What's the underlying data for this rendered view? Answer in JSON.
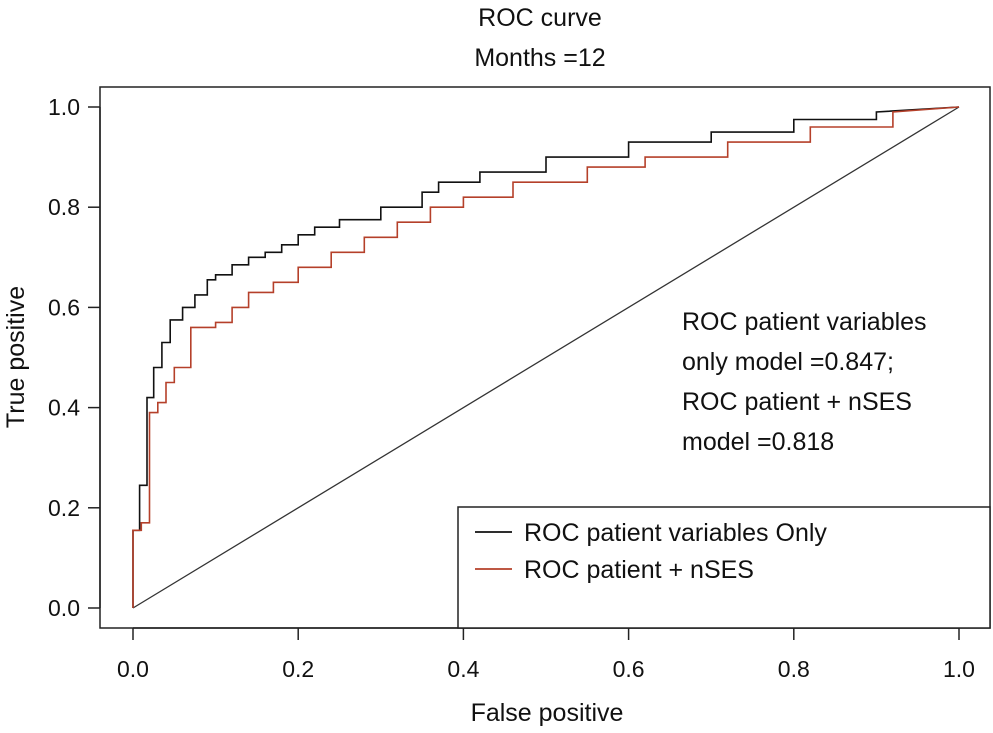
{
  "chart_data": {
    "type": "line",
    "title": "ROC curve",
    "subtitle": "Months =12",
    "xlabel": "False positive",
    "ylabel": "True positive",
    "xlim": [
      -0.04,
      1.04
    ],
    "ylim": [
      -0.04,
      1.04
    ],
    "xticks": [
      "0.0",
      "0.2",
      "0.4",
      "0.6",
      "0.8",
      "1.0"
    ],
    "yticks": [
      "0.0",
      "0.2",
      "0.4",
      "0.6",
      "0.8",
      "1.0"
    ],
    "grid": false,
    "annotation": [
      "ROC patient variables",
      "only model =0.847;",
      "ROC patient + nSES",
      "model =0.818"
    ],
    "legend": {
      "placement": "bottom-right",
      "entries": [
        "ROC patient variables Only",
        "ROC patient + nSES"
      ]
    },
    "series": [
      {
        "name": "ROC patient variables Only",
        "color": "#111111",
        "x": [
          0,
          0,
          0.008,
          0.008,
          0.017,
          0.017,
          0.025,
          0.025,
          0.035,
          0.035,
          0.045,
          0.045,
          0.06,
          0.06,
          0.075,
          0.075,
          0.09,
          0.09,
          0.1,
          0.1,
          0.12,
          0.12,
          0.14,
          0.14,
          0.16,
          0.16,
          0.18,
          0.18,
          0.2,
          0.2,
          0.22,
          0.22,
          0.25,
          0.25,
          0.3,
          0.3,
          0.35,
          0.35,
          0.37,
          0.37,
          0.42,
          0.42,
          0.5,
          0.5,
          0.6,
          0.6,
          0.7,
          0.7,
          0.8,
          0.8,
          0.9,
          0.9,
          1.0
        ],
        "y": [
          0,
          0.155,
          0.155,
          0.245,
          0.245,
          0.42,
          0.42,
          0.48,
          0.48,
          0.53,
          0.53,
          0.575,
          0.575,
          0.6,
          0.6,
          0.625,
          0.625,
          0.655,
          0.655,
          0.665,
          0.665,
          0.685,
          0.685,
          0.7,
          0.7,
          0.71,
          0.71,
          0.725,
          0.725,
          0.745,
          0.745,
          0.76,
          0.76,
          0.775,
          0.775,
          0.8,
          0.8,
          0.83,
          0.83,
          0.85,
          0.85,
          0.87,
          0.87,
          0.9,
          0.9,
          0.93,
          0.93,
          0.95,
          0.95,
          0.975,
          0.975,
          0.99,
          1.0
        ]
      },
      {
        "name": "ROC patient + nSES",
        "color": "#b5402a",
        "x": [
          0,
          0,
          0.01,
          0.01,
          0.02,
          0.02,
          0.03,
          0.03,
          0.04,
          0.04,
          0.05,
          0.05,
          0.07,
          0.07,
          0.1,
          0.1,
          0.12,
          0.12,
          0.14,
          0.14,
          0.17,
          0.17,
          0.2,
          0.2,
          0.24,
          0.24,
          0.28,
          0.28,
          0.32,
          0.32,
          0.36,
          0.36,
          0.4,
          0.4,
          0.46,
          0.46,
          0.55,
          0.55,
          0.62,
          0.62,
          0.72,
          0.72,
          0.82,
          0.82,
          0.92,
          0.92,
          1.0
        ],
        "y": [
          0,
          0.155,
          0.155,
          0.17,
          0.17,
          0.39,
          0.39,
          0.41,
          0.41,
          0.45,
          0.45,
          0.48,
          0.48,
          0.56,
          0.56,
          0.57,
          0.57,
          0.6,
          0.6,
          0.63,
          0.63,
          0.65,
          0.65,
          0.68,
          0.68,
          0.71,
          0.71,
          0.74,
          0.74,
          0.77,
          0.77,
          0.8,
          0.8,
          0.82,
          0.82,
          0.85,
          0.85,
          0.88,
          0.88,
          0.9,
          0.9,
          0.93,
          0.93,
          0.96,
          0.96,
          0.99,
          1.0
        ]
      }
    ],
    "reference_line": {
      "x": [
        0,
        1
      ],
      "y": [
        0,
        1
      ],
      "color": "#333333"
    }
  }
}
